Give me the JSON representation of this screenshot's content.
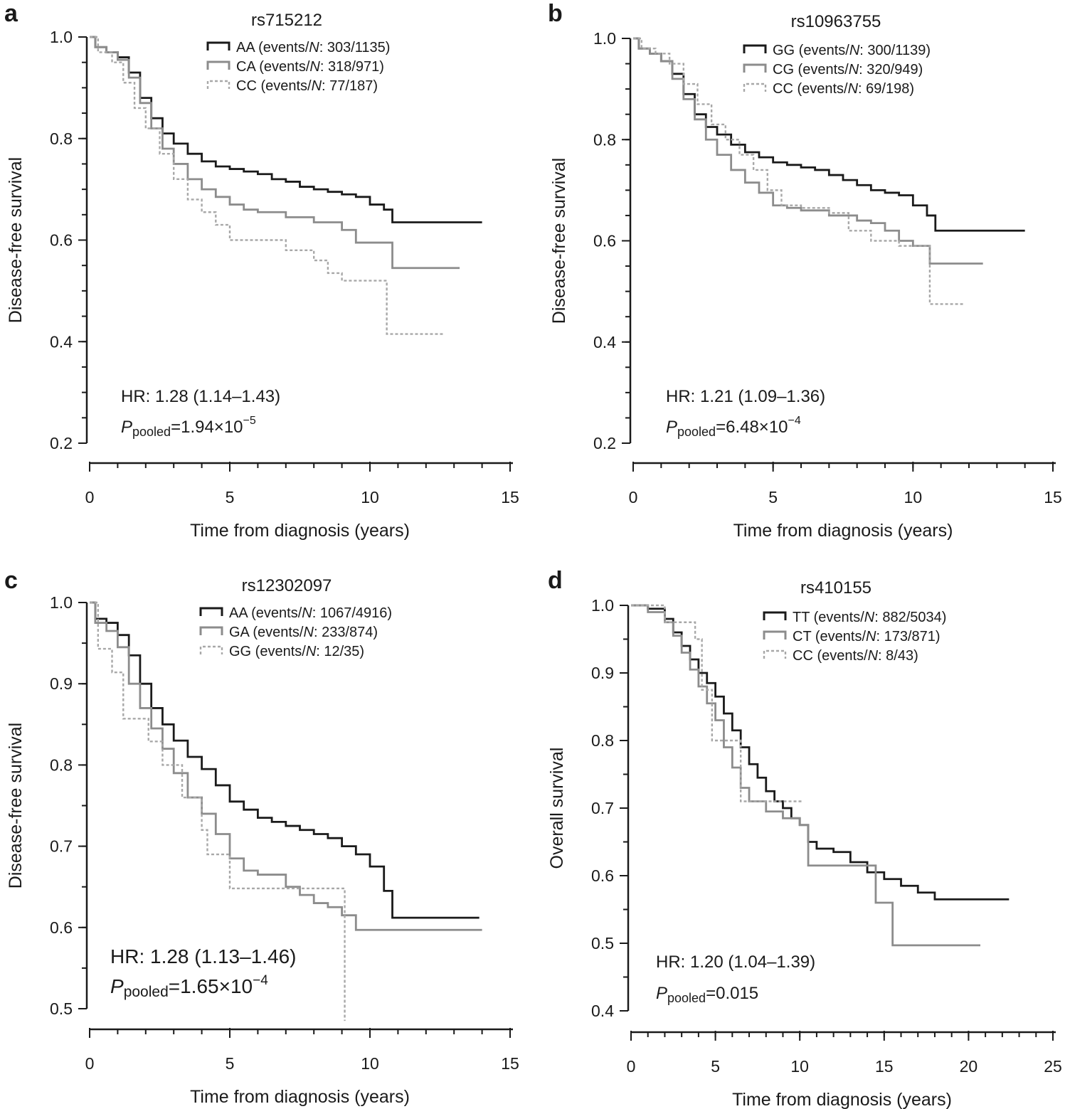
{
  "chart_data": [
    {
      "panel": "a",
      "type": "line",
      "subtype": "kaplan-meier-step",
      "title": "rs715212",
      "xlabel": "Time from diagnosis (years)",
      "ylabel": "Disease-free survival",
      "xlim": [
        0,
        15
      ],
      "ylim": [
        0.2,
        1.0
      ],
      "xticks": [
        0,
        5,
        10,
        15
      ],
      "yticks": [
        0.2,
        0.4,
        0.6,
        0.8,
        1.0
      ],
      "y_minor_step": 0.05,
      "x_minor_step": 1,
      "yticks_fmt": 1,
      "legend": "top-right",
      "hr": "HR: 1.28 (1.14–1.43)",
      "p_label": "P",
      "p_sub": "pooled",
      "p_text": "=1.94×10",
      "p_exp": "−5",
      "series": [
        {
          "name": "AA",
          "legend_text": "AA (events/",
          "legend_n": "N",
          "legend_counts": ": 303/1135)",
          "color": "#1a1a1a",
          "dash": "",
          "x": [
            0,
            0.2,
            0.6,
            1.0,
            1.4,
            1.8,
            2.2,
            2.6,
            3.0,
            3.5,
            4.0,
            4.5,
            5.0,
            5.5,
            6.0,
            6.5,
            7.0,
            7.5,
            8.0,
            8.5,
            9.0,
            9.5,
            10.0,
            10.5,
            10.8,
            14.0
          ],
          "y": [
            1.0,
            0.98,
            0.97,
            0.96,
            0.93,
            0.88,
            0.84,
            0.81,
            0.79,
            0.77,
            0.755,
            0.745,
            0.74,
            0.735,
            0.73,
            0.72,
            0.715,
            0.705,
            0.7,
            0.695,
            0.69,
            0.685,
            0.67,
            0.66,
            0.635,
            0.635
          ]
        },
        {
          "name": "CA",
          "legend_text": "CA (events/",
          "legend_n": "N",
          "legend_counts": ": 318/971)",
          "color": "#8c8c8c",
          "dash": "",
          "x": [
            0,
            0.2,
            0.6,
            1.0,
            1.4,
            1.8,
            2.2,
            2.6,
            3.0,
            3.5,
            4.0,
            4.5,
            5.0,
            5.5,
            6.0,
            7.0,
            8.0,
            9.0,
            9.5,
            10.0,
            10.8,
            13.2
          ],
          "y": [
            1.0,
            0.98,
            0.97,
            0.955,
            0.92,
            0.87,
            0.82,
            0.78,
            0.75,
            0.72,
            0.7,
            0.685,
            0.67,
            0.66,
            0.655,
            0.645,
            0.635,
            0.62,
            0.595,
            0.595,
            0.545,
            0.545
          ]
        },
        {
          "name": "CC",
          "legend_text": "CC (events/",
          "legend_n": "N",
          "legend_counts": ": 77/187)",
          "color": "#a8a8a8",
          "dash": "4,3",
          "x": [
            0,
            0.3,
            0.8,
            1.2,
            1.6,
            2.0,
            2.5,
            3.0,
            3.5,
            4.0,
            4.5,
            5.0,
            6.0,
            7.0,
            8.0,
            8.5,
            9.0,
            10.0,
            10.6,
            12.6
          ],
          "y": [
            1.0,
            0.97,
            0.95,
            0.91,
            0.86,
            0.82,
            0.77,
            0.72,
            0.68,
            0.655,
            0.63,
            0.6,
            0.6,
            0.58,
            0.56,
            0.535,
            0.52,
            0.52,
            0.415,
            0.415
          ]
        }
      ]
    },
    {
      "panel": "b",
      "type": "line",
      "subtype": "kaplan-meier-step",
      "title": "rs10963755",
      "xlabel": "Time from diagnosis (years)",
      "ylabel": "Disease-free survival",
      "xlim": [
        0,
        15
      ],
      "ylim": [
        0.2,
        1.0
      ],
      "xticks": [
        0,
        5,
        10,
        15
      ],
      "yticks": [
        0.2,
        0.4,
        0.6,
        0.8,
        1.0
      ],
      "y_minor_step": 0.05,
      "x_minor_step": 1,
      "yticks_fmt": 1,
      "legend": "top-right",
      "hr": "HR: 1.21 (1.09–1.36)",
      "p_label": "P",
      "p_sub": "pooled",
      "p_text": "=6.48×10",
      "p_exp": "−4",
      "series": [
        {
          "name": "GG",
          "legend_text": "GG (events/",
          "legend_n": "N",
          "legend_counts": ": 300/1139)",
          "color": "#1a1a1a",
          "dash": "",
          "x": [
            0,
            0.2,
            0.6,
            1.0,
            1.4,
            1.8,
            2.2,
            2.6,
            3.0,
            3.5,
            4.0,
            4.5,
            5.0,
            5.5,
            6.0,
            6.5,
            7.0,
            7.5,
            8.0,
            8.5,
            9.0,
            9.5,
            10.0,
            10.5,
            10.8,
            14.0
          ],
          "y": [
            1.0,
            0.98,
            0.97,
            0.955,
            0.93,
            0.89,
            0.85,
            0.825,
            0.81,
            0.79,
            0.775,
            0.765,
            0.755,
            0.75,
            0.745,
            0.74,
            0.73,
            0.72,
            0.71,
            0.7,
            0.695,
            0.69,
            0.67,
            0.65,
            0.62,
            0.62
          ]
        },
        {
          "name": "CG",
          "legend_text": "CG (events/",
          "legend_n": "N",
          "legend_counts": ": 320/949)",
          "color": "#8c8c8c",
          "dash": "",
          "x": [
            0,
            0.2,
            0.6,
            1.0,
            1.4,
            1.8,
            2.2,
            2.6,
            3.0,
            3.5,
            4.0,
            4.5,
            5.0,
            5.5,
            6.0,
            7.0,
            8.0,
            8.5,
            9.0,
            9.5,
            10.0,
            10.6,
            12.5
          ],
          "y": [
            1.0,
            0.98,
            0.97,
            0.955,
            0.92,
            0.88,
            0.84,
            0.8,
            0.77,
            0.74,
            0.715,
            0.695,
            0.67,
            0.665,
            0.66,
            0.65,
            0.64,
            0.635,
            0.62,
            0.6,
            0.59,
            0.555,
            0.555
          ]
        },
        {
          "name": "CC",
          "legend_text": "CC (events/",
          "legend_n": "N",
          "legend_counts": ": 69/198)",
          "color": "#a8a8a8",
          "dash": "4,3",
          "x": [
            0,
            0.3,
            0.8,
            1.3,
            1.8,
            2.3,
            2.8,
            3.3,
            3.8,
            4.3,
            4.8,
            5.3,
            6.0,
            7.0,
            7.7,
            8.5,
            9.5,
            10.5,
            10.6,
            11.8
          ],
          "y": [
            1.0,
            0.98,
            0.97,
            0.95,
            0.91,
            0.87,
            0.83,
            0.8,
            0.77,
            0.74,
            0.7,
            0.67,
            0.665,
            0.655,
            0.62,
            0.6,
            0.59,
            0.59,
            0.475,
            0.475
          ]
        }
      ]
    },
    {
      "panel": "c",
      "type": "line",
      "subtype": "kaplan-meier-step",
      "title": "rs12302097",
      "xlabel": "Time from diagnosis (years)",
      "ylabel": "Disease-free survival",
      "xlim": [
        0,
        15
      ],
      "ylim": [
        0.5,
        1.0
      ],
      "xticks": [
        0,
        5,
        10,
        15
      ],
      "yticks": [
        0.5,
        0.6,
        0.7,
        0.8,
        0.9,
        1.0
      ],
      "y_minor_step": 0.05,
      "x_minor_step": 1,
      "yticks_fmt": 1,
      "legend": "top-right",
      "hr": "HR: 1.28 (1.13–1.46)",
      "hr_large": true,
      "p_label": "P",
      "p_sub": "pooled",
      "p_text": "=1.65×10",
      "p_exp": "−4",
      "series": [
        {
          "name": "AA",
          "legend_text": "AA (events/",
          "legend_n": "N",
          "legend_counts": ": 1067/4916)",
          "color": "#1a1a1a",
          "dash": "",
          "x": [
            0,
            0.2,
            0.6,
            1.0,
            1.4,
            1.8,
            2.2,
            2.6,
            3.0,
            3.5,
            4.0,
            4.5,
            5.0,
            5.5,
            6.0,
            6.5,
            7.0,
            7.5,
            8.0,
            8.5,
            9.0,
            9.5,
            10.0,
            10.5,
            10.8,
            13.9
          ],
          "y": [
            1.0,
            0.98,
            0.975,
            0.96,
            0.935,
            0.9,
            0.87,
            0.85,
            0.83,
            0.81,
            0.795,
            0.775,
            0.755,
            0.745,
            0.735,
            0.73,
            0.725,
            0.72,
            0.715,
            0.71,
            0.7,
            0.69,
            0.675,
            0.645,
            0.612,
            0.612
          ]
        },
        {
          "name": "GA",
          "legend_text": "GA (events/",
          "legend_n": "N",
          "legend_counts": ": 233/874)",
          "color": "#8c8c8c",
          "dash": "",
          "x": [
            0,
            0.2,
            0.6,
            1.0,
            1.4,
            1.8,
            2.2,
            2.6,
            3.0,
            3.5,
            4.0,
            4.5,
            5.0,
            5.5,
            6.0,
            7.0,
            7.5,
            8.0,
            8.5,
            9.0,
            9.5,
            14.0
          ],
          "y": [
            1.0,
            0.975,
            0.965,
            0.945,
            0.9,
            0.87,
            0.845,
            0.82,
            0.79,
            0.76,
            0.74,
            0.715,
            0.685,
            0.67,
            0.665,
            0.65,
            0.64,
            0.63,
            0.625,
            0.615,
            0.597,
            0.597
          ]
        },
        {
          "name": "GG",
          "legend_text": "GG (events/",
          "legend_n": "N",
          "legend_counts": ": 12/35)",
          "color": "#a8a8a8",
          "dash": "4,3",
          "x": [
            0,
            0.3,
            0.8,
            1.2,
            2.1,
            2.6,
            3.3,
            4.0,
            4.2,
            5.0,
            9.1
          ],
          "y": [
            1.0,
            0.943,
            0.914,
            0.857,
            0.829,
            0.8,
            0.76,
            0.72,
            0.69,
            0.648,
            0.485
          ]
        }
      ]
    },
    {
      "panel": "d",
      "type": "line",
      "subtype": "kaplan-meier-step",
      "title": "rs410155",
      "xlabel": "Time from diagnosis (years)",
      "ylabel": "Overall survival",
      "xlim": [
        0,
        25
      ],
      "ylim": [
        0.4,
        1.0
      ],
      "xticks": [
        0,
        5,
        10,
        15,
        20,
        25
      ],
      "yticks": [
        0.4,
        0.5,
        0.6,
        0.7,
        0.8,
        0.9,
        1.0
      ],
      "y_minor_step": 0.05,
      "x_minor_step": 1,
      "yticks_fmt": 1,
      "legend": "top-right",
      "hr": "HR: 1.20 (1.04–1.39)",
      "p_label": "P",
      "p_sub": "pooled",
      "p_text": "=0.015",
      "p_exp": "",
      "series": [
        {
          "name": "TT",
          "legend_text": "TT (events/",
          "legend_n": "N",
          "legend_counts": ": 882/5034)",
          "color": "#1a1a1a",
          "dash": "",
          "x": [
            0,
            1.0,
            2.0,
            2.5,
            3.0,
            3.5,
            4.0,
            4.5,
            5.0,
            5.5,
            6.0,
            6.5,
            7.0,
            7.5,
            8.0,
            8.5,
            9.0,
            9.5,
            10.0,
            10.5,
            11.0,
            12.0,
            13.0,
            14.0,
            15.0,
            16.0,
            17.0,
            18.0,
            22.4
          ],
          "y": [
            1.0,
            0.995,
            0.98,
            0.96,
            0.94,
            0.92,
            0.9,
            0.885,
            0.865,
            0.84,
            0.815,
            0.79,
            0.765,
            0.745,
            0.725,
            0.71,
            0.7,
            0.685,
            0.675,
            0.65,
            0.64,
            0.635,
            0.62,
            0.605,
            0.595,
            0.585,
            0.575,
            0.565,
            0.565
          ]
        },
        {
          "name": "CT",
          "legend_text": "CT (events/",
          "legend_n": "N",
          "legend_counts": ": 173/871)",
          "color": "#8c8c8c",
          "dash": "",
          "x": [
            0,
            1.0,
            2.0,
            2.5,
            3.0,
            3.5,
            4.0,
            4.5,
            5.0,
            5.5,
            6.0,
            6.5,
            7.0,
            8.0,
            9.0,
            10.0,
            10.5,
            14.5,
            15.5,
            20.7
          ],
          "y": [
            1.0,
            0.99,
            0.975,
            0.955,
            0.93,
            0.905,
            0.88,
            0.855,
            0.83,
            0.79,
            0.76,
            0.73,
            0.71,
            0.695,
            0.685,
            0.675,
            0.615,
            0.56,
            0.497,
            0.497
          ]
        },
        {
          "name": "CC",
          "legend_text": "CC (events/",
          "legend_n": "N",
          "legend_counts": ": 8/43)",
          "color": "#a8a8a8",
          "dash": "4,3",
          "x": [
            0,
            2.0,
            3.8,
            4.2,
            4.8,
            6.5,
            10.1
          ],
          "y": [
            1.0,
            0.975,
            0.95,
            0.875,
            0.8,
            0.71,
            0.71
          ]
        }
      ]
    }
  ]
}
